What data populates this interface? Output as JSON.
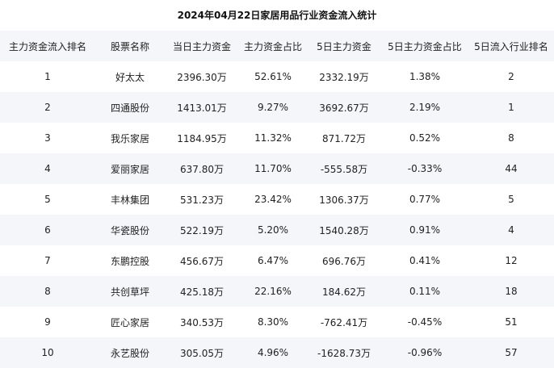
{
  "title": "2024年04月22日家居用品行业资金流入统计",
  "columns": [
    "主力资金流入排名",
    "股票名称",
    "当日主力资金",
    "主力资金占比",
    "5日主力资金",
    "5日主力资金占比",
    "5日流入行业排名"
  ],
  "rows": [
    [
      "1",
      "好太太",
      "2396.30万",
      "52.61%",
      "2332.19万",
      "1.38%",
      "2"
    ],
    [
      "2",
      "四通股份",
      "1413.01万",
      "9.27%",
      "3692.67万",
      "2.19%",
      "1"
    ],
    [
      "3",
      "我乐家居",
      "1184.95万",
      "11.32%",
      "871.72万",
      "0.52%",
      "8"
    ],
    [
      "4",
      "爱丽家居",
      "637.80万",
      "11.70%",
      "-555.58万",
      "-0.33%",
      "44"
    ],
    [
      "5",
      "丰林集团",
      "531.23万",
      "23.42%",
      "1306.37万",
      "0.77%",
      "5"
    ],
    [
      "6",
      "华瓷股份",
      "522.19万",
      "5.20%",
      "1540.28万",
      "0.91%",
      "4"
    ],
    [
      "7",
      "东鹏控股",
      "456.67万",
      "6.47%",
      "696.76万",
      "0.41%",
      "12"
    ],
    [
      "8",
      "共创草坪",
      "425.18万",
      "22.16%",
      "184.62万",
      "0.11%",
      "18"
    ],
    [
      "9",
      "匠心家居",
      "340.53万",
      "8.30%",
      "-762.41万",
      "-0.45%",
      "51"
    ],
    [
      "10",
      "永艺股份",
      "305.05万",
      "4.96%",
      "-1628.73万",
      "-0.96%",
      "57"
    ]
  ]
}
